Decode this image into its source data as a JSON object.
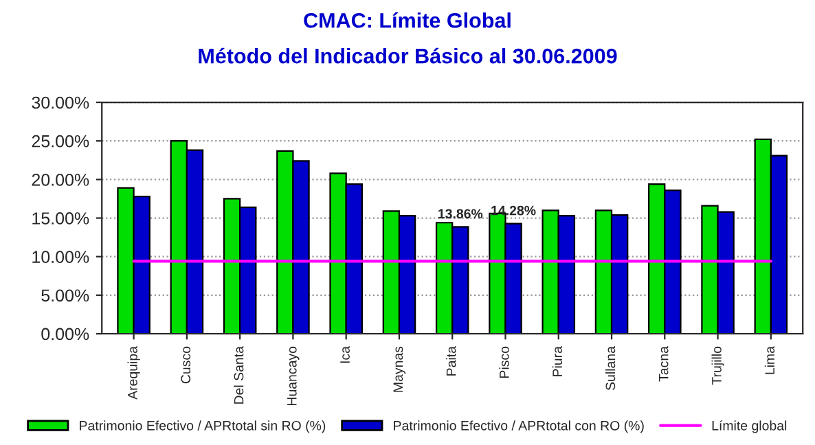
{
  "chart_data": {
    "type": "bar",
    "title": "CMAC: Límite Global",
    "subtitle": "Método del Indicador Básico al 30.06.2009",
    "categories": [
      "Arequipa",
      "Cusco",
      "Del Santa",
      "Huancayo",
      "Ica",
      "Maynas",
      "Paita",
      "Pisco",
      "Piura",
      "Sullana",
      "Tacna",
      "Trujillo",
      "Lima"
    ],
    "series": [
      {
        "name": "Patrimonio Efectivo / APRtotal sin RO (%)",
        "color": "#00dd00",
        "values": [
          18.9,
          25.0,
          17.5,
          23.7,
          20.8,
          15.9,
          14.4,
          15.6,
          16.0,
          16.0,
          19.4,
          16.6,
          25.2
        ]
      },
      {
        "name": "Patrimonio Efectivo / APRtotal con RO (%)",
        "color": "#0000cc",
        "values": [
          17.8,
          23.8,
          16.4,
          22.4,
          19.4,
          15.3,
          13.86,
          14.28,
          15.3,
          15.4,
          18.6,
          15.8,
          23.1
        ],
        "value_labels": [
          null,
          null,
          null,
          null,
          null,
          null,
          "13.86%",
          "14.28%",
          null,
          null,
          null,
          null,
          null
        ]
      },
      {
        "name": "Límite global",
        "type": "line",
        "color": "#ff00ff",
        "values": [
          9.4,
          9.4,
          9.4,
          9.4,
          9.4,
          9.4,
          9.4,
          9.4,
          9.4,
          9.4,
          9.4,
          9.4,
          9.4
        ]
      }
    ],
    "ylim": [
      0,
      30
    ],
    "yticks": [
      {
        "value": 0,
        "label": "0.00%"
      },
      {
        "value": 5,
        "label": "5.00%"
      },
      {
        "value": 10,
        "label": "10.00%"
      },
      {
        "value": 15,
        "label": "15.00%"
      },
      {
        "value": 20,
        "label": "20.00%"
      },
      {
        "value": 25,
        "label": "25.00%"
      },
      {
        "value": 30,
        "label": "30.00%"
      }
    ],
    "grid": "y",
    "legend": "bottom"
  }
}
